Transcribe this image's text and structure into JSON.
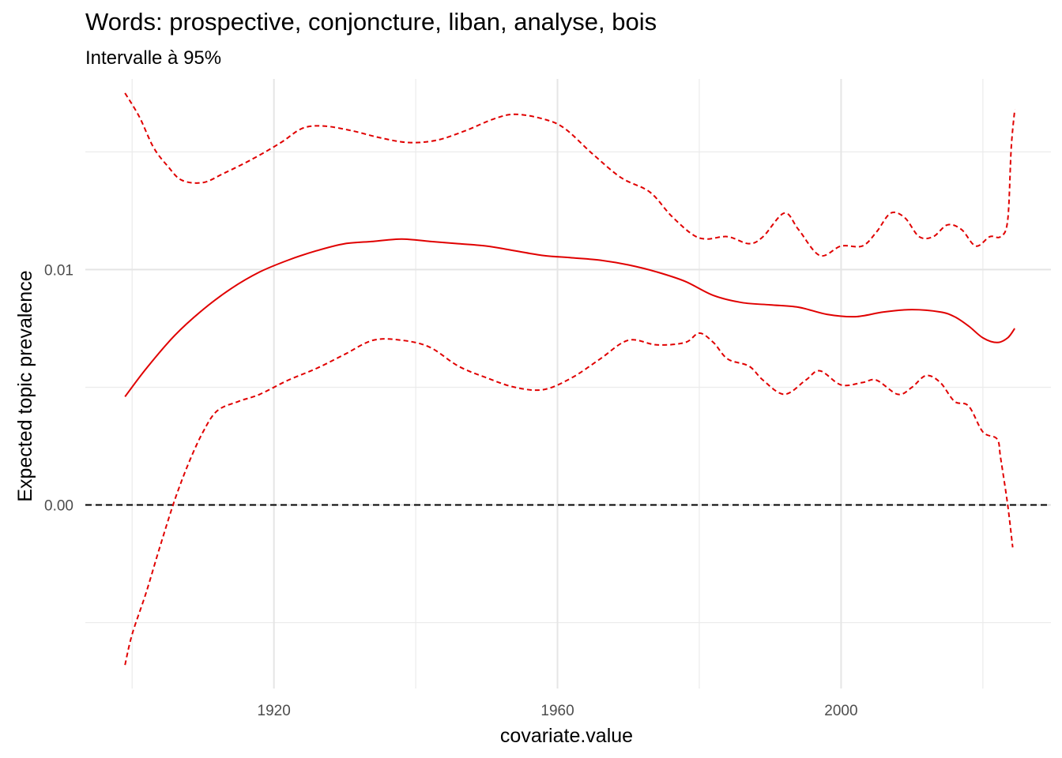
{
  "chart_data": {
    "type": "line",
    "title": "Words: prospective, conjoncture, liban, analyse, bois",
    "subtitle": "Intervalle à 95%",
    "xlabel": "covariate.value",
    "ylabel": "Expected topic prevalence",
    "xlim": [
      1893.4,
      2029.6
    ],
    "ylim": [
      -0.0078,
      0.0181
    ],
    "x_ticks": [
      1920,
      1960,
      2000
    ],
    "x_tick_labels": [
      "1920",
      "1960",
      "2000"
    ],
    "y_ticks": [
      0.0,
      0.01
    ],
    "y_tick_labels": [
      "0.00",
      "0.01"
    ],
    "grid": true,
    "reference_line": {
      "y": 0,
      "style": "dashed",
      "color": "#000000"
    },
    "line_color": "#e00000",
    "series": [
      {
        "role": "estimate",
        "style": "solid",
        "points": [
          [
            1899,
            0.0046
          ],
          [
            1902,
            0.0058
          ],
          [
            1906,
            0.0072
          ],
          [
            1910,
            0.0083
          ],
          [
            1914,
            0.0092
          ],
          [
            1918,
            0.0099
          ],
          [
            1922,
            0.0104
          ],
          [
            1926,
            0.0108
          ],
          [
            1930,
            0.0111
          ],
          [
            1934,
            0.0112
          ],
          [
            1938,
            0.0113
          ],
          [
            1942,
            0.0112
          ],
          [
            1946,
            0.0111
          ],
          [
            1950,
            0.011
          ],
          [
            1954,
            0.0108
          ],
          [
            1958,
            0.0106
          ],
          [
            1962,
            0.0105
          ],
          [
            1966,
            0.0104
          ],
          [
            1970,
            0.0102
          ],
          [
            1974,
            0.0099
          ],
          [
            1978,
            0.0095
          ],
          [
            1982,
            0.0089
          ],
          [
            1986,
            0.0086
          ],
          [
            1990,
            0.0085
          ],
          [
            1994,
            0.0084
          ],
          [
            1998,
            0.0081
          ],
          [
            2002,
            0.008
          ],
          [
            2006,
            0.0082
          ],
          [
            2010,
            0.0083
          ],
          [
            2014,
            0.0082
          ],
          [
            2016,
            0.008
          ],
          [
            2018,
            0.0076
          ],
          [
            2020,
            0.0071
          ],
          [
            2022,
            0.0069
          ],
          [
            2023.5,
            0.0071
          ],
          [
            2024.5,
            0.0075
          ]
        ]
      },
      {
        "role": "upper 95% bound",
        "style": "dashed",
        "points": [
          [
            1899,
            0.0175
          ],
          [
            1901,
            0.0165
          ],
          [
            1903,
            0.0152
          ],
          [
            1905,
            0.0144
          ],
          [
            1907,
            0.0138
          ],
          [
            1910,
            0.0137
          ],
          [
            1913,
            0.0141
          ],
          [
            1917,
            0.0147
          ],
          [
            1921,
            0.0154
          ],
          [
            1924,
            0.016
          ],
          [
            1927,
            0.0161
          ],
          [
            1931,
            0.0159
          ],
          [
            1935,
            0.0156
          ],
          [
            1939,
            0.0154
          ],
          [
            1943,
            0.0155
          ],
          [
            1947,
            0.0159
          ],
          [
            1951,
            0.0164
          ],
          [
            1954,
            0.0166
          ],
          [
            1958,
            0.0164
          ],
          [
            1961,
            0.016
          ],
          [
            1965,
            0.0149
          ],
          [
            1969,
            0.0139
          ],
          [
            1973,
            0.0133
          ],
          [
            1976,
            0.0123
          ],
          [
            1979,
            0.0115
          ],
          [
            1981,
            0.0113
          ],
          [
            1984,
            0.0114
          ],
          [
            1987,
            0.0111
          ],
          [
            1989,
            0.0114
          ],
          [
            1992,
            0.0124
          ],
          [
            1994,
            0.0117
          ],
          [
            1997,
            0.0106
          ],
          [
            2000,
            0.011
          ],
          [
            2003,
            0.011
          ],
          [
            2005,
            0.0116
          ],
          [
            2007,
            0.0124
          ],
          [
            2009,
            0.0122
          ],
          [
            2011,
            0.0114
          ],
          [
            2013,
            0.0114
          ],
          [
            2015,
            0.0119
          ],
          [
            2017,
            0.0117
          ],
          [
            2019,
            0.011
          ],
          [
            2021,
            0.0114
          ],
          [
            2022.5,
            0.0114
          ],
          [
            2023.5,
            0.0121
          ],
          [
            2024,
            0.0152
          ],
          [
            2024.5,
            0.0168
          ]
        ]
      },
      {
        "role": "lower 95% bound",
        "style": "dashed",
        "points": [
          [
            1899,
            -0.0068
          ],
          [
            1900,
            -0.0055
          ],
          [
            1902,
            -0.0037
          ],
          [
            1904,
            -0.0017
          ],
          [
            1906,
            0.0002
          ],
          [
            1908,
            0.0018
          ],
          [
            1910,
            0.0031
          ],
          [
            1912,
            0.004
          ],
          [
            1915,
            0.0044
          ],
          [
            1918,
            0.0047
          ],
          [
            1922,
            0.0053
          ],
          [
            1926,
            0.0058
          ],
          [
            1930,
            0.0064
          ],
          [
            1934,
            0.007
          ],
          [
            1938,
            0.007
          ],
          [
            1942,
            0.0067
          ],
          [
            1946,
            0.0059
          ],
          [
            1950,
            0.0054
          ],
          [
            1954,
            0.005
          ],
          [
            1958,
            0.0049
          ],
          [
            1962,
            0.0054
          ],
          [
            1966,
            0.0062
          ],
          [
            1970,
            0.007
          ],
          [
            1974,
            0.0068
          ],
          [
            1978,
            0.0069
          ],
          [
            1980,
            0.0073
          ],
          [
            1982,
            0.0069
          ],
          [
            1984,
            0.0062
          ],
          [
            1987,
            0.0059
          ],
          [
            1989,
            0.0053
          ],
          [
            1992,
            0.0047
          ],
          [
            1995,
            0.0053
          ],
          [
            1997,
            0.0057
          ],
          [
            2000,
            0.0051
          ],
          [
            2003,
            0.0052
          ],
          [
            2005,
            0.0053
          ],
          [
            2008,
            0.0047
          ],
          [
            2010,
            0.005
          ],
          [
            2012,
            0.0055
          ],
          [
            2014,
            0.0052
          ],
          [
            2016,
            0.0044
          ],
          [
            2018,
            0.0042
          ],
          [
            2020,
            0.0031
          ],
          [
            2022,
            0.0028
          ],
          [
            2022.5,
            0.002
          ],
          [
            2023.5,
            0.0
          ],
          [
            2024.2,
            -0.0018
          ]
        ]
      }
    ]
  }
}
